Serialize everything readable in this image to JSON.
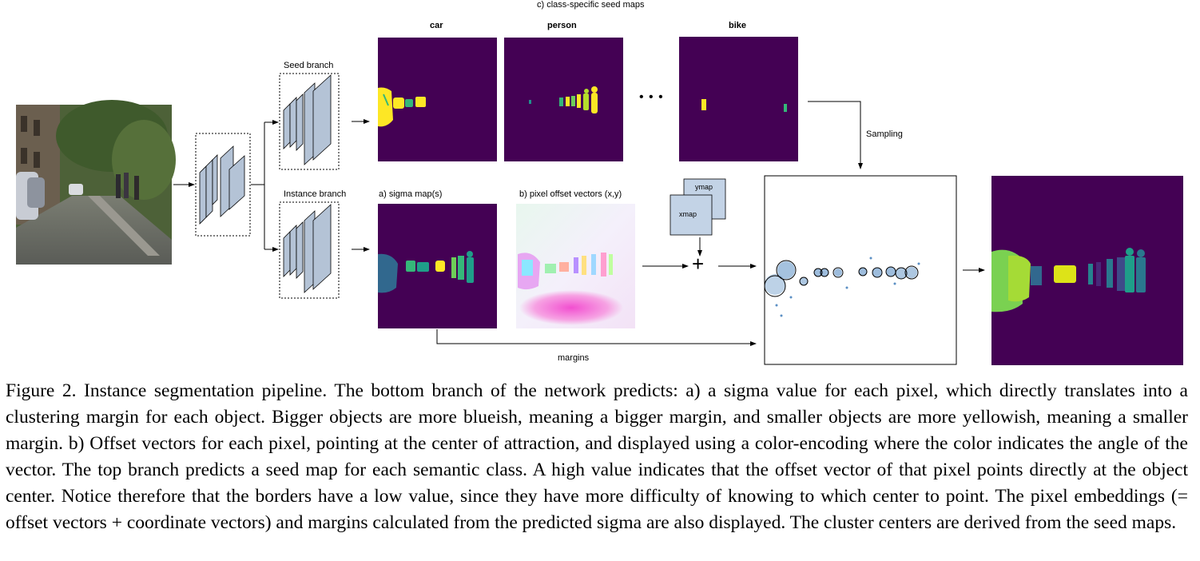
{
  "figure": {
    "labels": {
      "seed_maps_title": "c) class-specific seed maps",
      "seed_branch": "Seed branch",
      "instance_branch": "Instance branch",
      "sigma_maps": "a)  sigma map(s)",
      "offset_vectors": "b) pixel offset vectors (x,y)",
      "sampling": "Sampling",
      "margins": "margins",
      "ymap": "ymap",
      "xmap": "xmap",
      "plus": "+",
      "ellipsis": "• • •"
    },
    "classes": [
      "car",
      "person",
      "bike"
    ],
    "colors": {
      "viridis_dark": "#440154",
      "viridis_yellow": "#fde725",
      "viridis_green": "#35b779",
      "viridis_blue": "#31688e",
      "feature_block": "#b4c3d6",
      "map_box": "#c3d3e6"
    }
  },
  "caption": {
    "text": "Figure 2. Instance segmentation pipeline. The bottom branch of the network predicts: a) a sigma value for each pixel, which directly translates into a clustering margin for each object. Bigger objects are more blueish, meaning a bigger margin, and smaller objects are more yellowish, meaning a smaller margin. b) Offset vectors for each pixel, pointing at the center of attraction, and displayed using a color-encoding where the color indicates the angle of the vector. The top branch predicts a seed map for each semantic class. A high value indicates that the offset vector of that pixel points directly at the object center. Notice therefore that the borders have a low value, since they have more difficulty of knowing to which center to point. The pixel embeddings (= offset vectors + coordinate vectors) and margins calculated from the predicted sigma are also displayed. The cluster centers are derived from the seed maps."
  }
}
